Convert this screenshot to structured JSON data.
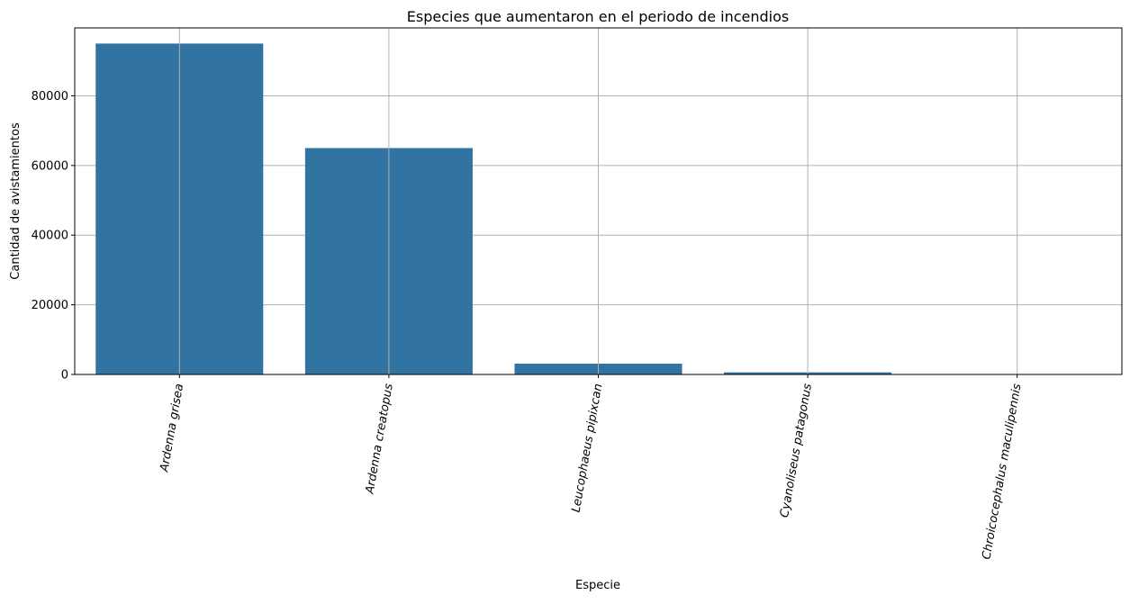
{
  "chart_data": {
    "type": "bar",
    "title": "Especies que aumentaron en el periodo de incendios",
    "xlabel": "Especie",
    "ylabel": "Cantidad de avistamientos",
    "categories": [
      "Ardenna grisea",
      "Ardenna creatopus",
      "Leucophaeus pipixcan",
      "Cyanoliseus patagonus",
      "Chroicocephalus maculipennis"
    ],
    "values": [
      95000,
      65000,
      3100,
      600,
      80
    ],
    "ylim": [
      0,
      99500
    ],
    "yticks": [
      0,
      20000,
      40000,
      60000,
      80000
    ],
    "ytick_labels": [
      "0",
      "20000",
      "40000",
      "60000",
      "80000"
    ],
    "grid": true,
    "legend": "none",
    "bar_color": "#3274a1",
    "grid_color": "#b0b0b0",
    "category_style": "italic, rotated -80°"
  }
}
